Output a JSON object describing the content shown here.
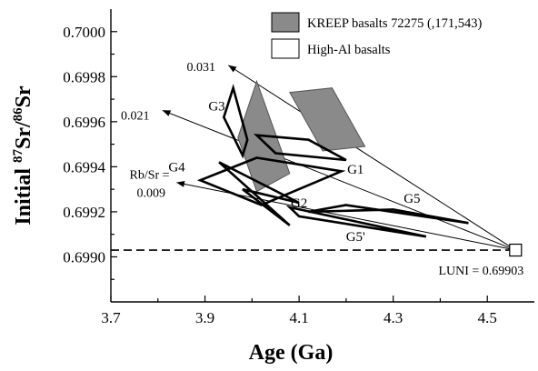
{
  "chart_data": {
    "type": "scatter",
    "xlabel": "Age (Ga)",
    "ylabel_parts": [
      "Initial ",
      "87",
      "Sr/",
      "86",
      "Sr"
    ],
    "xlim": [
      3.7,
      4.6
    ],
    "ylim": [
      0.6988,
      0.7001
    ],
    "x_ticks": [
      "3.7",
      "3.9",
      "4.1",
      "4.3",
      "4.5"
    ],
    "y_ticks": [
      "0.6990",
      "0.6992",
      "0.6994",
      "0.6996",
      "0.6998",
      "0.7000"
    ],
    "legend": [
      {
        "label": "KREEP basalts 72275 (,171,543)",
        "fill": "#8a8a8a"
      },
      {
        "label": "High-Al basalts",
        "fill": "#ffffff"
      }
    ],
    "luni": {
      "label": "LUNI = 0.69903",
      "age": 4.56,
      "ratio": 0.69903
    },
    "reference_line": {
      "y": 0.69903
    },
    "evolution_lines": [
      {
        "label": "0.031",
        "from": [
          4.56,
          0.69903
        ],
        "to": [
          3.95,
          0.69985
        ]
      },
      {
        "label": "0.021",
        "from": [
          4.56,
          0.69903
        ],
        "to": [
          3.81,
          0.69965
        ]
      },
      {
        "label": "Rb/Sr =",
        "label2": "0.009",
        "from": [
          4.56,
          0.69903
        ],
        "to": [
          3.84,
          0.69933
        ]
      }
    ],
    "kreep_fields": [
      [
        [
          4.01,
          0.69978
        ],
        [
          4.08,
          0.69937
        ],
        [
          4.01,
          0.69929
        ],
        [
          3.97,
          0.69953
        ]
      ],
      [
        [
          4.08,
          0.69973
        ],
        [
          4.17,
          0.69975
        ],
        [
          4.24,
          0.69949
        ],
        [
          4.15,
          0.69947
        ]
      ]
    ],
    "groups": [
      {
        "label": "G3",
        "label_at": [
          3.925,
          0.69965
        ],
        "points": [
          [
            3.96,
            0.69975
          ],
          [
            3.99,
            0.69952
          ],
          [
            3.98,
            0.69945
          ],
          [
            3.94,
            0.69962
          ]
        ]
      },
      {
        "label": "G1",
        "label_at": [
          4.22,
          0.69937
        ],
        "points": [
          [
            4.01,
            0.69954
          ],
          [
            4.12,
            0.69952
          ],
          [
            4.2,
            0.69943
          ],
          [
            4.05,
            0.69946
          ]
        ]
      },
      {
        "label": "G4",
        "label_at": [
          3.84,
          0.69938
        ],
        "points": [
          [
            3.89,
            0.69934
          ],
          [
            4.01,
            0.69944
          ],
          [
            4.19,
            0.69938
          ],
          [
            4.02,
            0.69923
          ]
        ]
      },
      {
        "label": "G2",
        "label_at": [
          4.1,
          0.69922
        ],
        "points": [
          [
            3.93,
            0.69942
          ],
          [
            4.1,
            0.69924
          ],
          [
            3.98,
            0.6993
          ],
          [
            4.08,
            0.69914
          ]
        ]
      },
      {
        "label": "G5",
        "label_at": [
          4.34,
          0.69924
        ],
        "points": [
          [
            4.2,
            0.69923
          ],
          [
            4.46,
            0.69915
          ],
          [
            4.3,
            0.69921
          ],
          [
            4.12,
            0.6992
          ]
        ]
      },
      {
        "label": "G5'",
        "label_at": [
          4.22,
          0.69907
        ],
        "points": [
          [
            4.08,
            0.69922
          ],
          [
            4.37,
            0.69909
          ],
          [
            4.25,
            0.69913
          ],
          [
            4.1,
            0.69918
          ]
        ]
      }
    ]
  }
}
